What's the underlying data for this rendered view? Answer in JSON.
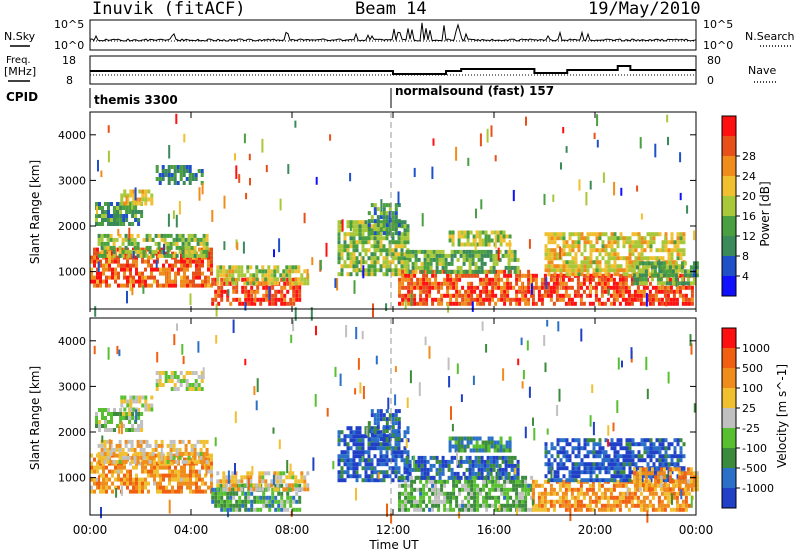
{
  "header": {
    "station": "Inuvik (fitACF)",
    "beam": "Beam 14",
    "date": "19/May/2010"
  },
  "noise_panel": {
    "left_label": "N.Sky",
    "left_top": "10^5",
    "left_bottom": "10^0",
    "right_label": "N.Search",
    "right_top": "10^5",
    "right_bottom": "10^0"
  },
  "freq_panel": {
    "left_label_1": "Freq.",
    "left_label_2": "[MHz]",
    "left_top": "18",
    "left_bottom": "8",
    "right_label": "Nave",
    "right_top": "80",
    "right_bottom": "0"
  },
  "cpid_panel": {
    "label": "CPID",
    "modes": [
      {
        "name": "themis 3300",
        "start_hour": 0
      },
      {
        "name": "normalsound (fast) 157",
        "start_hour": 12
      }
    ]
  },
  "chart_data": [
    {
      "type": "heatmap",
      "name": "power",
      "ylabel": "Slant Range [km]",
      "xlabel": "",
      "ylim": [
        180,
        4500
      ],
      "yticks": [
        "1000",
        "2000",
        "3000",
        "4000"
      ],
      "xticks": [],
      "colorbar": {
        "label": "Power [dB]",
        "ticks": [
          "4",
          "8",
          "12",
          "16",
          "20",
          "24",
          "28"
        ],
        "colors": [
          "#1010ff",
          "#2050c8",
          "#3a8a5a",
          "#4aa040",
          "#a8c83a",
          "#f0c030",
          "#f08c1c",
          "#e8501a",
          "#ff1010"
        ]
      },
      "regions": [
        {
          "t0": 0.2,
          "t1": 2.0,
          "r0": 2000,
          "r1": 2500,
          "v": 0.3
        },
        {
          "t0": 1.2,
          "t1": 2.4,
          "r0": 2450,
          "r1": 2750,
          "v": 0.6
        },
        {
          "t0": 2.6,
          "t1": 4.4,
          "r0": 2900,
          "r1": 3300,
          "v": 0.25
        },
        {
          "t0": 0.0,
          "t1": 4.8,
          "r0": 650,
          "r1": 1500,
          "v": 0.85
        },
        {
          "t0": 0.3,
          "t1": 4.6,
          "r0": 1300,
          "r1": 1800,
          "v": 0.45
        },
        {
          "t0": 4.8,
          "t1": 8.3,
          "r0": 250,
          "r1": 800,
          "v": 0.9
        },
        {
          "t0": 5.0,
          "t1": 8.6,
          "r0": 700,
          "r1": 1100,
          "v": 0.55
        },
        {
          "t0": 9.8,
          "t1": 12.6,
          "r0": 900,
          "r1": 2100,
          "v": 0.45
        },
        {
          "t0": 11.0,
          "t1": 12.2,
          "r0": 1800,
          "r1": 2500,
          "v": 0.3
        },
        {
          "t0": 12.2,
          "t1": 17.5,
          "r0": 250,
          "r1": 1000,
          "v": 0.88
        },
        {
          "t0": 12.5,
          "t1": 17.0,
          "r0": 950,
          "r1": 1400,
          "v": 0.4
        },
        {
          "t0": 14.2,
          "t1": 16.6,
          "r0": 1550,
          "r1": 1900,
          "v": 0.5
        },
        {
          "t0": 17.5,
          "t1": 23.8,
          "r0": 250,
          "r1": 900,
          "v": 0.92
        },
        {
          "t0": 18.0,
          "t1": 23.5,
          "r0": 900,
          "r1": 1800,
          "v": 0.6
        },
        {
          "t0": 21.5,
          "t1": 24.0,
          "r0": 700,
          "r1": 1200,
          "v": 0.35
        }
      ]
    },
    {
      "type": "heatmap",
      "name": "velocity",
      "ylabel": "Slant Range [km]",
      "xlabel": "Time UT",
      "ylim": [
        180,
        4500
      ],
      "yticks": [
        "1000",
        "2000",
        "3000",
        "4000"
      ],
      "xticks": [
        "00:00",
        "04:00",
        "08:00",
        "12:00",
        "16:00",
        "20:00",
        "00:00"
      ],
      "xlim_hours": [
        0,
        24
      ],
      "colorbar": {
        "label": "Velocity [m s^-1]",
        "ticks": [
          "1000",
          "500",
          "100",
          "25",
          "-25",
          "-100",
          "-500",
          "-1000"
        ],
        "colors": [
          "#2040c8",
          "#2a70c8",
          "#3c8a3c",
          "#58c030",
          "#c0c0c0",
          "#f0c030",
          "#f08c1c",
          "#f06010",
          "#ff1010"
        ]
      },
      "regions": [
        {
          "t0": 0.2,
          "t1": 2.0,
          "r0": 2000,
          "r1": 2500,
          "v": 0.45
        },
        {
          "t0": 1.2,
          "t1": 2.4,
          "r0": 2450,
          "r1": 2750,
          "v": 0.5
        },
        {
          "t0": 2.6,
          "t1": 4.4,
          "r0": 2900,
          "r1": 3300,
          "v": 0.5
        },
        {
          "t0": 0.0,
          "t1": 4.8,
          "r0": 650,
          "r1": 1500,
          "v": 0.72
        },
        {
          "t0": 0.3,
          "t1": 4.6,
          "r0": 1300,
          "r1": 1800,
          "v": 0.6
        },
        {
          "t0": 4.8,
          "t1": 8.3,
          "r0": 250,
          "r1": 800,
          "v": 0.3
        },
        {
          "t0": 5.0,
          "t1": 8.6,
          "r0": 700,
          "r1": 1100,
          "v": 0.6
        },
        {
          "t0": 9.8,
          "t1": 12.6,
          "r0": 900,
          "r1": 2100,
          "v": 0.05
        },
        {
          "t0": 11.0,
          "t1": 12.2,
          "r0": 1800,
          "r1": 2500,
          "v": 0.1
        },
        {
          "t0": 12.2,
          "t1": 17.5,
          "r0": 250,
          "r1": 1000,
          "v": 0.35
        },
        {
          "t0": 12.5,
          "t1": 17.0,
          "r0": 950,
          "r1": 1400,
          "v": 0.1
        },
        {
          "t0": 14.2,
          "t1": 16.6,
          "r0": 1550,
          "r1": 1900,
          "v": 0.25
        },
        {
          "t0": 17.5,
          "t1": 23.8,
          "r0": 250,
          "r1": 900,
          "v": 0.75
        },
        {
          "t0": 18.0,
          "t1": 23.5,
          "r0": 900,
          "r1": 1800,
          "v": 0.05
        },
        {
          "t0": 21.5,
          "t1": 24.0,
          "r0": 700,
          "r1": 1200,
          "v": 0.7
        }
      ]
    }
  ]
}
